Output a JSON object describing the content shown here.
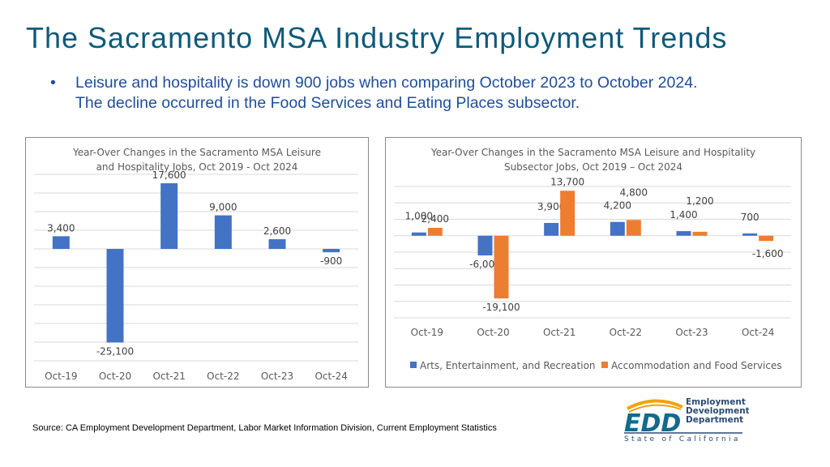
{
  "header": {
    "title": "The Sacramento MSA Industry Employment Trends",
    "bullet_symbol": "•",
    "bullet_line1": "Leisure and hospitality is down 900 jobs  when comparing October 2023 to October 2024.",
    "bullet_line2": "The decline occurred in the Food Services and Eating Places subsector."
  },
  "colors": {
    "blue": "#4472c4",
    "orange": "#ed7d31",
    "title": "#0e5a7a",
    "bullet": "#1f4e9a",
    "grid": "#d9d9d9"
  },
  "chart_data": [
    {
      "type": "bar",
      "title_line1": "Year-Over Changes in the Sacramento MSA Leisure",
      "title_line2": "and Hospitality Jobs, Oct 2019 - Oct 2024",
      "categories": [
        "Oct-19",
        "Oct-20",
        "Oct-21",
        "Oct-22",
        "Oct-23",
        "Oct-24"
      ],
      "values": [
        3400,
        -25100,
        17600,
        9000,
        2600,
        -900
      ],
      "data_labels": [
        "3,400",
        "-25,100",
        "17,600",
        "9,000",
        "2,600",
        "-900"
      ],
      "ylim": [
        -30000,
        20000
      ],
      "grid": true,
      "legend": "none"
    },
    {
      "type": "bar",
      "title_line1": "Year-Over Changes in the Sacramento MSA Leisure and Hospitality",
      "title_line2": "Subsector Jobs, Oct 2019 – Oct 2024",
      "categories": [
        "Oct-19",
        "Oct-20",
        "Oct-21",
        "Oct-22",
        "Oct-23",
        "Oct-24"
      ],
      "series": [
        {
          "name": "Arts, Entertainment, and Recreation",
          "values": [
            1000,
            -6000,
            3900,
            4200,
            1400,
            700
          ],
          "data_labels": [
            "1,000",
            "-6,000",
            "3,900",
            "4,200",
            "1,400",
            "700"
          ]
        },
        {
          "name": "Accommodation and Food Services",
          "values": [
            2400,
            -19100,
            13700,
            4800,
            1200,
            -1600
          ],
          "data_labels": [
            "2,400",
            "-19,100",
            "13,700",
            "4,800",
            "1,200",
            "-1,600"
          ]
        }
      ],
      "ylim": [
        -25000,
        15000
      ],
      "grid": true,
      "legend": "bottom"
    }
  ],
  "footer": {
    "source": "Source: CA Employment Development Department, Labor Market Information Division, Current Employment Statistics"
  },
  "logo": {
    "mark": "EDD",
    "line1": "Employment",
    "line2": "Development",
    "line3": "Department",
    "tagline": "State of California"
  }
}
